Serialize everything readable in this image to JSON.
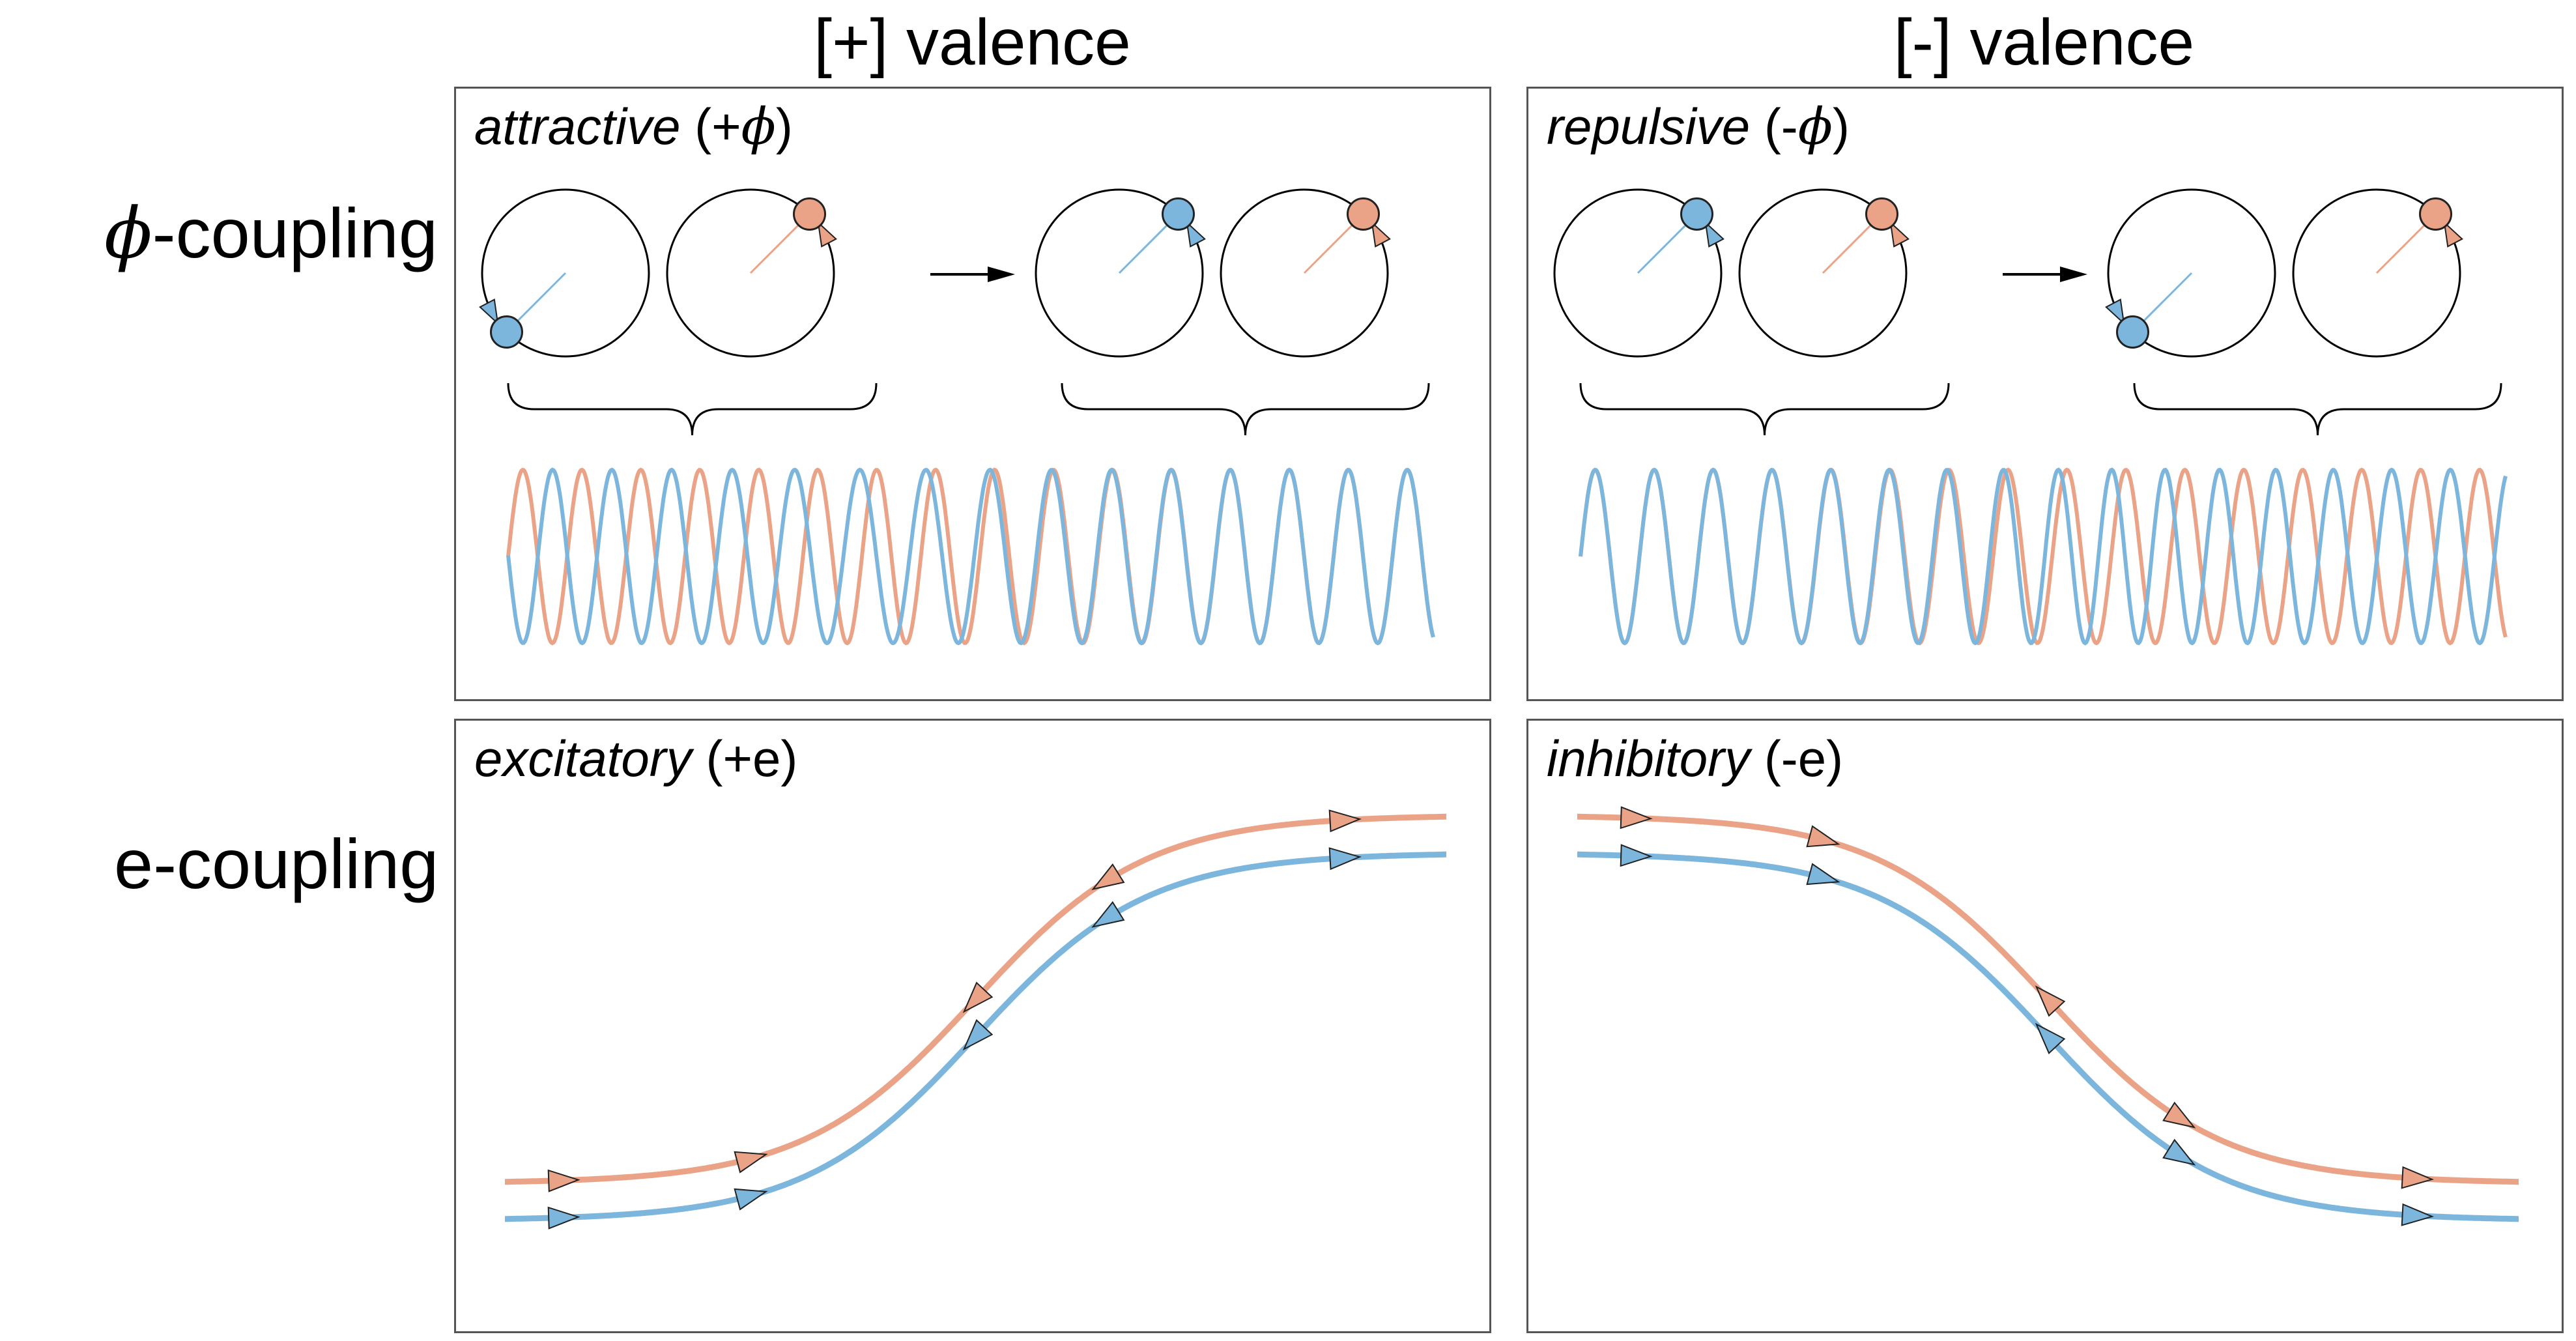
{
  "headers": {
    "positive": "[+] valence",
    "negative": "[-] valence"
  },
  "rows": {
    "phi": {
      "symbol": "ϕ",
      "text": "-coupling"
    },
    "e": {
      "text": "e-coupling"
    }
  },
  "panels": {
    "attractive": {
      "name": "attractive",
      "pre": "(+",
      "symbol": "ϕ",
      "post": ")"
    },
    "repulsive": {
      "name": "repulsive",
      "pre": "(-",
      "symbol": "ϕ",
      "post": ")"
    },
    "excitatory": {
      "name": "excitatory",
      "suffix": "(+e)"
    },
    "inhibitory": {
      "name": "inhibitory",
      "suffix": "(-e)"
    }
  },
  "colors": {
    "blue": "#7cb6dd",
    "orange": "#eba388",
    "outline": "#222222",
    "frame": "#555555"
  }
}
